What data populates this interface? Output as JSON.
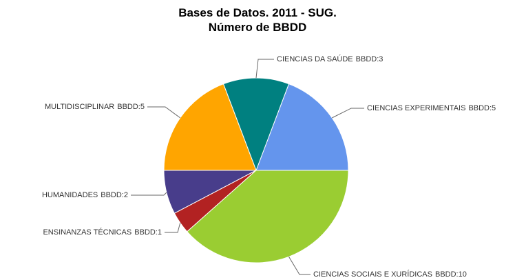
{
  "chart_data": {
    "type": "pie",
    "title": "Bases de Datos. 2011 - SUG.",
    "subtitle": "Número de BBDD",
    "categories": [
      "CIENCIAS EXPERIMENTAIS",
      "CIENCIAS DA SAÚDE",
      "MULTIDISCIPLINAR",
      "HUMANIDADES",
      "ENSINANZAS TÉCNICAS",
      "CIENCIAS SOCIAIS E XURÍDICAS"
    ],
    "values": [
      5,
      3,
      5,
      2,
      1,
      10
    ],
    "value_labels": [
      "BBDD:5",
      "BBDD:3",
      "BBDD:5",
      "BBDD:2",
      "BBDD:1",
      "BBDD:10"
    ],
    "colors": [
      "#6495ed",
      "#008080",
      "#ffa500",
      "#483d8b",
      "#b22222",
      "#9acd32"
    ]
  }
}
